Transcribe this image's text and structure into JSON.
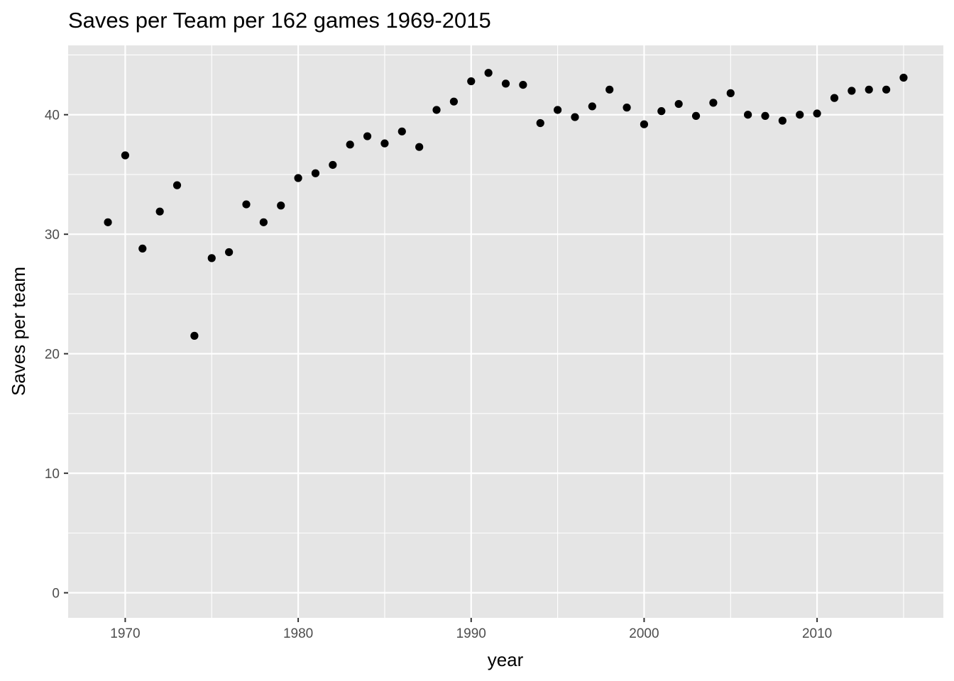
{
  "chart_data": {
    "type": "scatter",
    "title": "Saves per Team per 162 games 1969-2015",
    "xlabel": "year",
    "ylabel": "Saves per team",
    "xlim": [
      1966.7,
      2017.3
    ],
    "ylim": [
      -2.1,
      45.8
    ],
    "x_ticks": [
      1970,
      1980,
      1990,
      2000,
      2010
    ],
    "y_ticks": [
      0,
      10,
      20,
      30,
      40
    ],
    "x_tick_labels": [
      "1970",
      "1980",
      "1990",
      "2000",
      "2010"
    ],
    "y_tick_labels": [
      "0",
      "10",
      "20",
      "30",
      "40"
    ],
    "grid": true,
    "legend": "none",
    "colors": {
      "panel_background": "#e5e5e5",
      "grid": "#ffffff",
      "point": "#000000",
      "tick": "#4d4d4d"
    },
    "x": [
      1969,
      1970,
      1971,
      1972,
      1973,
      1974,
      1975,
      1976,
      1977,
      1978,
      1979,
      1980,
      1981,
      1982,
      1983,
      1984,
      1985,
      1986,
      1987,
      1988,
      1989,
      1990,
      1991,
      1992,
      1993,
      1994,
      1995,
      1996,
      1997,
      1998,
      1999,
      2000,
      2001,
      2002,
      2003,
      2004,
      2005,
      2006,
      2007,
      2008,
      2009,
      2010,
      2011,
      2012,
      2013,
      2014,
      2015
    ],
    "y": [
      31.0,
      36.6,
      28.8,
      31.9,
      34.1,
      21.5,
      28.0,
      28.5,
      32.5,
      31.0,
      32.4,
      34.7,
      35.1,
      35.8,
      37.5,
      38.2,
      37.6,
      38.6,
      37.3,
      40.4,
      41.1,
      42.8,
      43.5,
      42.6,
      42.5,
      39.3,
      40.4,
      39.8,
      40.7,
      42.1,
      40.6,
      39.2,
      40.3,
      40.9,
      39.9,
      41.0,
      41.8,
      40.0,
      39.9,
      39.5,
      40.0,
      40.1,
      41.4,
      42.0,
      42.1,
      42.1,
      43.1
    ]
  }
}
